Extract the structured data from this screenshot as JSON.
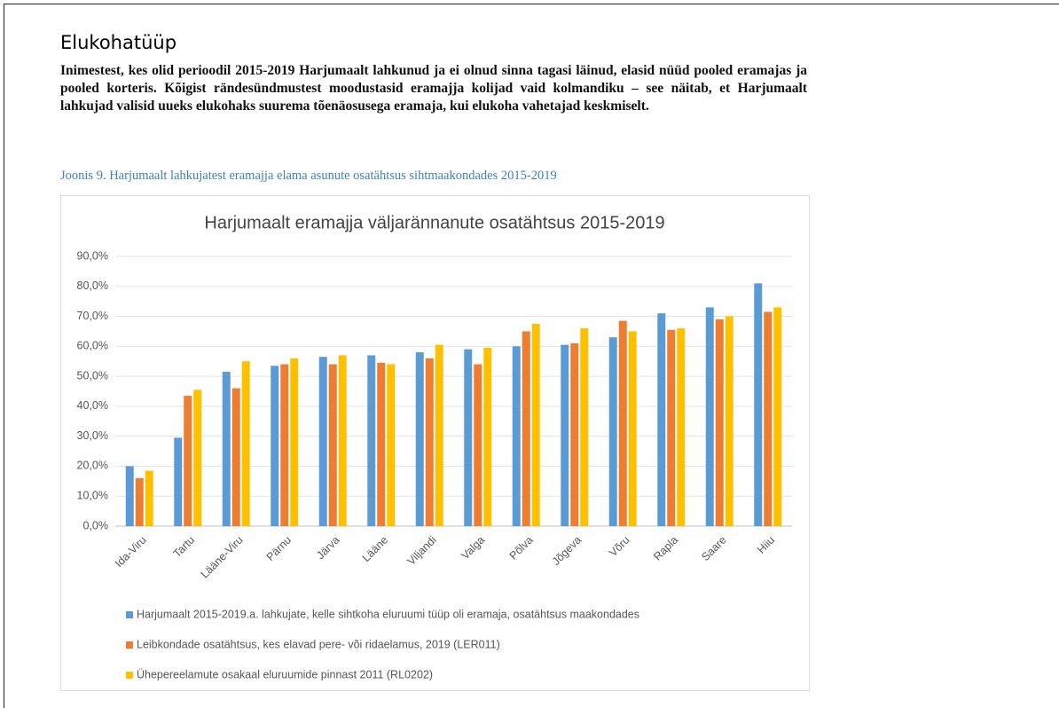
{
  "heading": "Elukohatüüp",
  "paragraph": "Inimestest, kes olid perioodil 2015-2019 Harjumaalt lahkunud ja ei olnud sinna tagasi läinud, elasid nüüd pooled eramajas ja pooled korteris. Kõigist rändesündmustest moodustasid eramajja kolijad vaid kolmandiku – see näitab, et Harjumaalt lahkujad valisid uueks elukohaks suurema tõenäosusega eramaja, kui elukoha vahetajad keskmiselt.",
  "caption": "Joonis 9. Harjumaalt lahkujatest eramajja elama asunute osatähtsus sihtmaakondades 2015-2019",
  "chart_data": {
    "type": "bar",
    "title": "Harjumaalt eramajja väljarännanute osatähtsus 2015-2019",
    "categories": [
      "Ida-Viru",
      "Tartu",
      "Lääne-Viru",
      "Pärnu",
      "Järva",
      "Lääne",
      "Viljandi",
      "Valga",
      "Põlva",
      "Jõgeva",
      "Võru",
      "Rapla",
      "Saare",
      "Hiiu"
    ],
    "series": [
      {
        "name": "Harjumaalt 2015-2019.a. lahkujate, kelle sihtkoha eluruumi tüüp oli eramaja, osatähtsus maakondades",
        "color": "#5b9bd5",
        "values": [
          20,
          29.5,
          51.5,
          53.5,
          56.5,
          57,
          58,
          59,
          60,
          60.5,
          63,
          71,
          73,
          81
        ]
      },
      {
        "name": "Leibkondade osatähtsus, kes elavad pere- või ridaelamus, 2019 (LER011)",
        "color": "#ed7d31",
        "values": [
          16,
          43.5,
          46,
          54,
          54,
          54.5,
          56,
          54,
          65,
          61,
          68.5,
          65.5,
          69,
          71.5
        ]
      },
      {
        "name": "Ühepereelamute osakaal eluruumide pinnast 2011 (RL0202)",
        "color": "#ffc000",
        "values": [
          18.5,
          45.5,
          55,
          56,
          57,
          54,
          60.5,
          59.5,
          67.5,
          66,
          65,
          66,
          70,
          73
        ]
      }
    ],
    "ylim": [
      0,
      90
    ],
    "yticks": [
      {
        "value": 0,
        "label": "0,0%"
      },
      {
        "value": 10,
        "label": "10,0%"
      },
      {
        "value": 20,
        "label": "20,0%"
      },
      {
        "value": 30,
        "label": "30,0%"
      },
      {
        "value": 40,
        "label": "40,0%"
      },
      {
        "value": 50,
        "label": "50,0%"
      },
      {
        "value": 60,
        "label": "60,0%"
      },
      {
        "value": 70,
        "label": "70,0%"
      },
      {
        "value": 80,
        "label": "80,0%"
      },
      {
        "value": 90,
        "label": "90,0%"
      }
    ],
    "grid": true,
    "legend": "bottom"
  }
}
